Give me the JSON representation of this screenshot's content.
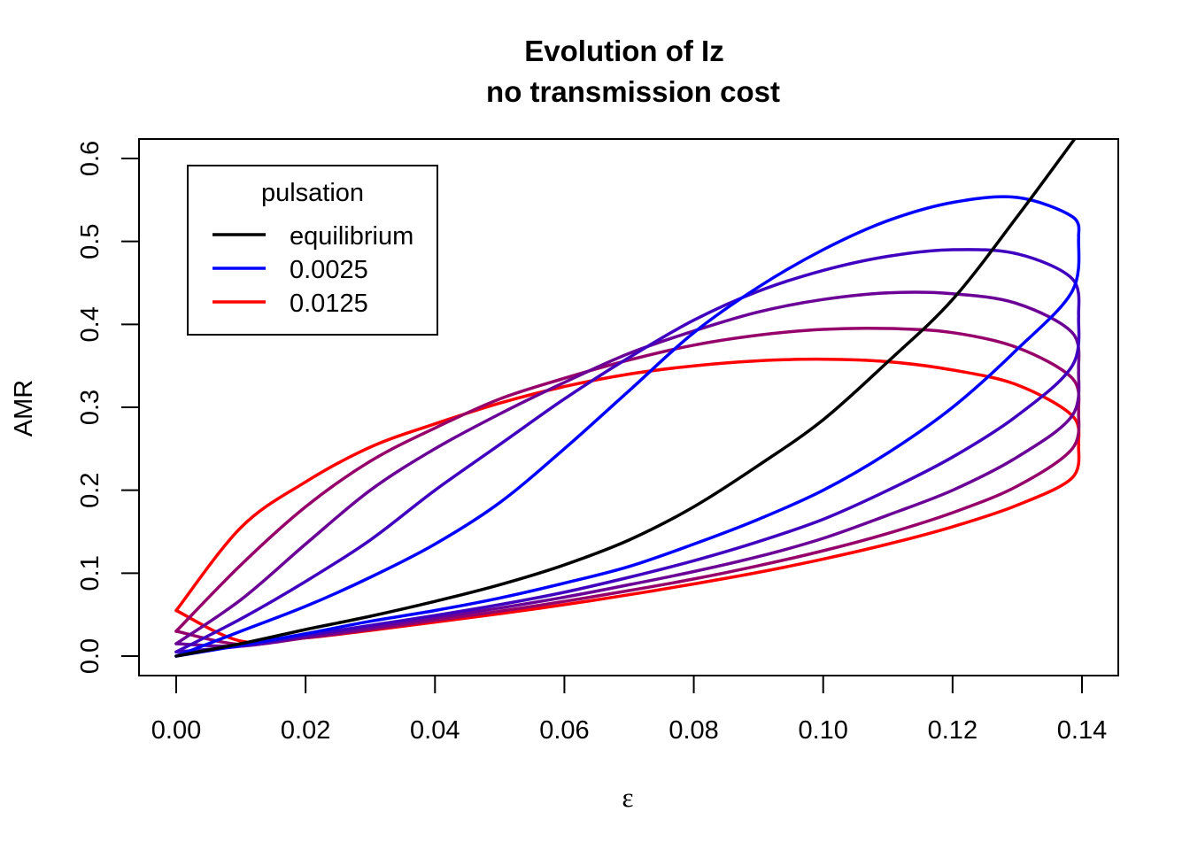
{
  "chart_data": {
    "type": "line",
    "title": "Evolution of Iz",
    "subtitle": "no transmission cost",
    "xlabel": "ε",
    "ylabel": "AMR",
    "xlim": [
      0,
      0.14
    ],
    "ylim": [
      0,
      0.62
    ],
    "xticks": [
      "0.00",
      "0.02",
      "0.04",
      "0.06",
      "0.08",
      "0.10",
      "0.12",
      "0.14"
    ],
    "yticks": [
      "0.0",
      "0.1",
      "0.2",
      "0.3",
      "0.4",
      "0.5",
      "0.6"
    ],
    "grid": false,
    "legend": {
      "title": "pulsation",
      "position": "top-left",
      "entries": [
        {
          "label": "equilibrium",
          "color": "#000000"
        },
        {
          "label": "0.0025",
          "color": "#0000FF"
        },
        {
          "label": "0.0125",
          "color": "#FF0000"
        }
      ]
    },
    "equilibrium": {
      "name": "equilibrium",
      "color": "#000000",
      "x": [
        0.0,
        0.01,
        0.02,
        0.03,
        0.04,
        0.05,
        0.06,
        0.07,
        0.08,
        0.09,
        0.1,
        0.11,
        0.12,
        0.13,
        0.139
      ],
      "y": [
        0.0,
        0.015,
        0.032,
        0.048,
        0.066,
        0.086,
        0.11,
        0.14,
        0.18,
        0.23,
        0.285,
        0.355,
        0.43,
        0.53,
        0.625
      ]
    },
    "series": [
      {
        "name": "0.0025",
        "color": "#0000FF",
        "upper": {
          "x": [
            0.0,
            0.01,
            0.02,
            0.03,
            0.04,
            0.05,
            0.06,
            0.07,
            0.08,
            0.09,
            0.1,
            0.11,
            0.12,
            0.13,
            0.1385,
            0.1395
          ],
          "y": [
            0.0,
            0.03,
            0.06,
            0.095,
            0.135,
            0.185,
            0.25,
            0.32,
            0.39,
            0.445,
            0.49,
            0.525,
            0.547,
            0.553,
            0.53,
            0.505
          ]
        },
        "lower": {
          "x": [
            0.0,
            0.01,
            0.02,
            0.03,
            0.04,
            0.05,
            0.06,
            0.07,
            0.08,
            0.09,
            0.1,
            0.11,
            0.12,
            0.13,
            0.1385,
            0.1395
          ],
          "y": [
            0.0,
            0.013,
            0.027,
            0.042,
            0.055,
            0.07,
            0.088,
            0.108,
            0.135,
            0.165,
            0.2,
            0.245,
            0.3,
            0.37,
            0.44,
            0.505
          ]
        }
      },
      {
        "name": "",
        "color": "#3F00BF",
        "upper": {
          "x": [
            0.0,
            0.01,
            0.02,
            0.03,
            0.04,
            0.05,
            0.06,
            0.07,
            0.08,
            0.09,
            0.1,
            0.11,
            0.12,
            0.13,
            0.1385,
            0.1395
          ],
          "y": [
            0.005,
            0.045,
            0.09,
            0.14,
            0.2,
            0.255,
            0.31,
            0.36,
            0.405,
            0.44,
            0.465,
            0.482,
            0.49,
            0.485,
            0.455,
            0.41
          ]
        },
        "lower": {
          "x": [
            0.0,
            0.01,
            0.02,
            0.03,
            0.04,
            0.05,
            0.06,
            0.07,
            0.08,
            0.09,
            0.1,
            0.11,
            0.12,
            0.13,
            0.1385,
            0.1395
          ],
          "y": [
            0.005,
            0.012,
            0.025,
            0.037,
            0.049,
            0.062,
            0.077,
            0.095,
            0.115,
            0.138,
            0.165,
            0.2,
            0.24,
            0.29,
            0.35,
            0.41
          ]
        }
      },
      {
        "name": "",
        "color": "#6A0095",
        "upper": {
          "x": [
            0.0,
            0.01,
            0.02,
            0.03,
            0.04,
            0.05,
            0.06,
            0.07,
            0.08,
            0.09,
            0.1,
            0.11,
            0.12,
            0.13,
            0.1385,
            0.1395
          ],
          "y": [
            0.015,
            0.068,
            0.135,
            0.2,
            0.25,
            0.292,
            0.33,
            0.365,
            0.392,
            0.415,
            0.43,
            0.438,
            0.437,
            0.425,
            0.39,
            0.345
          ]
        },
        "lower": {
          "x": [
            0.0,
            0.01,
            0.02,
            0.03,
            0.04,
            0.05,
            0.06,
            0.07,
            0.08,
            0.09,
            0.1,
            0.11,
            0.12,
            0.13,
            0.1385,
            0.1395
          ],
          "y": [
            0.015,
            0.012,
            0.023,
            0.034,
            0.046,
            0.058,
            0.071,
            0.086,
            0.102,
            0.12,
            0.142,
            0.17,
            0.2,
            0.24,
            0.29,
            0.345
          ]
        }
      },
      {
        "name": "",
        "color": "#95006A",
        "upper": {
          "x": [
            0.0,
            0.01,
            0.02,
            0.03,
            0.04,
            0.05,
            0.06,
            0.07,
            0.08,
            0.09,
            0.1,
            0.11,
            0.12,
            0.13,
            0.1385,
            0.1395
          ],
          "y": [
            0.03,
            0.11,
            0.18,
            0.235,
            0.275,
            0.31,
            0.335,
            0.357,
            0.375,
            0.387,
            0.394,
            0.395,
            0.39,
            0.372,
            0.335,
            0.295
          ]
        },
        "lower": {
          "x": [
            0.0,
            0.01,
            0.02,
            0.03,
            0.04,
            0.05,
            0.06,
            0.07,
            0.08,
            0.09,
            0.1,
            0.11,
            0.12,
            0.13,
            0.1385,
            0.1395
          ],
          "y": [
            0.03,
            0.014,
            0.022,
            0.032,
            0.043,
            0.054,
            0.066,
            0.079,
            0.093,
            0.109,
            0.127,
            0.148,
            0.173,
            0.205,
            0.25,
            0.295
          ]
        }
      },
      {
        "name": "0.0125",
        "color": "#FF0000",
        "upper": {
          "x": [
            0.0,
            0.01,
            0.02,
            0.03,
            0.04,
            0.05,
            0.06,
            0.07,
            0.08,
            0.09,
            0.1,
            0.11,
            0.12,
            0.13,
            0.1385,
            0.1395
          ],
          "y": [
            0.055,
            0.155,
            0.21,
            0.252,
            0.28,
            0.305,
            0.325,
            0.34,
            0.35,
            0.356,
            0.358,
            0.355,
            0.345,
            0.327,
            0.29,
            0.255
          ]
        },
        "lower": {
          "x": [
            0.0,
            0.01,
            0.02,
            0.03,
            0.04,
            0.05,
            0.06,
            0.07,
            0.08,
            0.09,
            0.1,
            0.11,
            0.12,
            0.13,
            0.1385,
            0.1395
          ],
          "y": [
            0.055,
            0.018,
            0.022,
            0.031,
            0.041,
            0.051,
            0.062,
            0.074,
            0.087,
            0.101,
            0.117,
            0.135,
            0.156,
            0.182,
            0.215,
            0.255
          ]
        }
      }
    ]
  }
}
